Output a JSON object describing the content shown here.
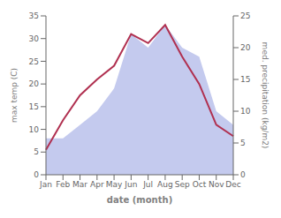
{
  "chart_data": {
    "type": "line",
    "categories": [
      "Jan",
      "Feb",
      "Mar",
      "Apr",
      "May",
      "Jun",
      "Jul",
      "Aug",
      "Sep",
      "Oct",
      "Nov",
      "Dec"
    ],
    "series": [
      {
        "type": "area",
        "axis": "y2",
        "color": "#b0b8e8",
        "values": [
          5.714285714285714,
          5.714285714285714,
          7.857142857142857,
          10,
          13.571428571428571,
          22.142857142857142,
          20,
          23.571428571428573,
          20,
          18.571428571428573,
          10,
          7.857142857142857
        ]
      },
      {
        "type": "line",
        "color": "#b03050",
        "values": [
          5.5,
          12.0,
          17.5,
          21.0,
          24.0,
          31.0,
          29.0,
          33.0,
          26.0,
          20.0,
          11.0,
          8.5
        ]
      }
    ],
    "xlabel": "date (month)",
    "ylabel": "max temp (C)",
    "y2label": "med. precipitation (kg/m2)",
    "ylim": [
      0,
      35
    ],
    "yticks": [
      0,
      5,
      10,
      15,
      20,
      25,
      30,
      35
    ],
    "y2lim": [
      0,
      25
    ],
    "y2ticks": [
      0,
      5,
      10,
      15,
      20,
      25
    ],
    "grid": false
  }
}
